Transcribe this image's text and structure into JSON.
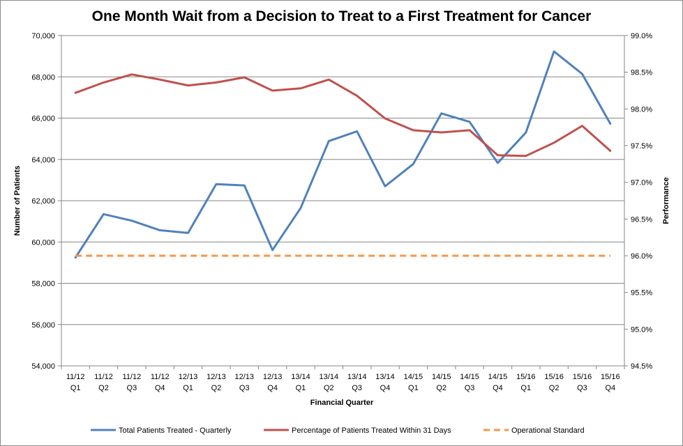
{
  "chart_data": {
    "type": "line",
    "title": "One Month Wait from a Decision to Treat to a First Treatment for Cancer",
    "xlabel": "Financial Quarter",
    "ylabel_left": "Number of Patients",
    "ylabel_right": "Performance",
    "categories": [
      [
        "11/12",
        "Q1"
      ],
      [
        "11/12",
        "Q2"
      ],
      [
        "11/12",
        "Q3"
      ],
      [
        "11/12",
        "Q4"
      ],
      [
        "12/13",
        "Q1"
      ],
      [
        "12/13",
        "Q2"
      ],
      [
        "12/13",
        "Q3"
      ],
      [
        "12/13",
        "Q4"
      ],
      [
        "13/14",
        "Q1"
      ],
      [
        "13/14",
        "Q2"
      ],
      [
        "13/14",
        "Q3"
      ],
      [
        "13/14",
        "Q4"
      ],
      [
        "14/15",
        "Q1"
      ],
      [
        "14/15",
        "Q2"
      ],
      [
        "14/15",
        "Q3"
      ],
      [
        "14/15",
        "Q4"
      ],
      [
        "15/16",
        "Q1"
      ],
      [
        "15/16",
        "Q2"
      ],
      [
        "15/16",
        "Q3"
      ],
      [
        "15/16",
        "Q4"
      ]
    ],
    "left_axis": {
      "min": 54000,
      "max": 70000,
      "step": 2000,
      "tick_labels": [
        "54,000",
        "56,000",
        "58,000",
        "60,000",
        "62,000",
        "64,000",
        "66,000",
        "68,000",
        "70,000"
      ]
    },
    "right_axis": {
      "min": 94.5,
      "max": 99.0,
      "step": 0.5,
      "tick_labels": [
        "94.5%",
        "95.0%",
        "95.5%",
        "96.0%",
        "96.5%",
        "97.0%",
        "97.5%",
        "98.0%",
        "98.5%",
        "99.0%"
      ]
    },
    "grid": true,
    "legend_position": "bottom",
    "series": [
      {
        "name": "Total Patients Treated - Quarterly",
        "axis": "left",
        "color": "#4f81bd",
        "dash": false,
        "values": [
          59250,
          61350,
          61030,
          60570,
          60440,
          62800,
          62740,
          59610,
          61650,
          64890,
          65360,
          62700,
          63780,
          66230,
          65820,
          63830,
          65300,
          69230,
          68140,
          65730
        ]
      },
      {
        "name": "Percentage of Patients Treated Within 31 Days",
        "axis": "right",
        "color": "#c0504d",
        "dash": false,
        "values": [
          98.22,
          98.36,
          98.47,
          98.4,
          98.32,
          98.36,
          98.43,
          98.25,
          98.28,
          98.4,
          98.18,
          97.87,
          97.71,
          97.68,
          97.71,
          97.37,
          97.36,
          97.54,
          97.77,
          97.43
        ]
      },
      {
        "name": "Operational Standard",
        "axis": "right",
        "color": "#f79646",
        "dash": true,
        "values": [
          96.0,
          96.0,
          96.0,
          96.0,
          96.0,
          96.0,
          96.0,
          96.0,
          96.0,
          96.0,
          96.0,
          96.0,
          96.0,
          96.0,
          96.0,
          96.0,
          96.0,
          96.0,
          96.0,
          96.0
        ]
      }
    ]
  }
}
